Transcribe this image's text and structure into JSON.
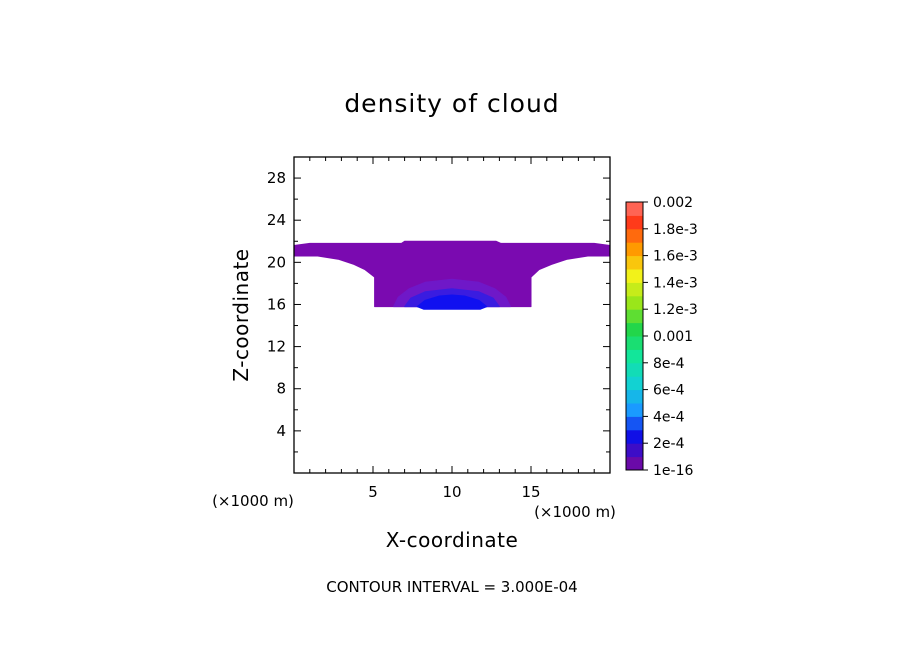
{
  "chart_data": {
    "type": "heatmap",
    "title": "density of cloud",
    "xlabel": "X-coordinate",
    "ylabel": "Z-coordinate",
    "x_unit": "(×1000 m)",
    "z_unit": "(×1000 m)",
    "xlim": [
      0,
      20
    ],
    "ylim": [
      0,
      30
    ],
    "x_ticks": [
      {
        "value": 5,
        "label": "5"
      },
      {
        "value": 10,
        "label": "10"
      },
      {
        "value": 15,
        "label": "15"
      }
    ],
    "y_ticks": [
      {
        "value": 4,
        "label": "4"
      },
      {
        "value": 8,
        "label": "8"
      },
      {
        "value": 12,
        "label": "12"
      },
      {
        "value": 16,
        "label": "16"
      },
      {
        "value": 20,
        "label": "20"
      },
      {
        "value": 24,
        "label": "24"
      },
      {
        "value": 28,
        "label": "28"
      }
    ],
    "colorbar": {
      "levels": [
        {
          "label": "1e-16",
          "color": "#6a0aa8"
        },
        {
          "label": "2e-4",
          "color": "#1010e6"
        },
        {
          "label": "4e-4",
          "color": "#1a9aff"
        },
        {
          "label": "6e-4",
          "color": "#12d2d2"
        },
        {
          "label": "8e-4",
          "color": "#12e69a"
        },
        {
          "label": "0.001",
          "color": "#22d64a"
        },
        {
          "label": "1.2e-3",
          "color": "#9ae61a"
        },
        {
          "label": "1.4e-3",
          "color": "#f2f21a"
        },
        {
          "label": "1.6e-3",
          "color": "#ff9a00"
        },
        {
          "label": "1.8e-3",
          "color": "#ff3a1a"
        },
        {
          "label": "0.002",
          "color": "#ff8e8e"
        }
      ]
    },
    "contour_interval_text": "CONTOUR INTERVAL = 3.000E-04",
    "regions": [
      {
        "name": "cloud-base-layer",
        "color": "#7a0ab0",
        "outline": [
          [
            0,
            21.6
          ],
          [
            0,
            20.6
          ],
          [
            1.5,
            20.6
          ],
          [
            2.8,
            20.3
          ],
          [
            3.8,
            19.8
          ],
          [
            4.5,
            19.3
          ],
          [
            5.1,
            18.6
          ],
          [
            5.1,
            15.8
          ],
          [
            15.0,
            15.8
          ],
          [
            15.0,
            18.6
          ],
          [
            15.5,
            19.3
          ],
          [
            16.3,
            19.8
          ],
          [
            17.3,
            20.3
          ],
          [
            18.6,
            20.6
          ],
          [
            20,
            20.6
          ],
          [
            20,
            21.6
          ],
          [
            19.0,
            21.8
          ],
          [
            13.1,
            21.8
          ],
          [
            12.8,
            22.0
          ],
          [
            7.0,
            22.0
          ],
          [
            6.8,
            21.8
          ],
          [
            1.0,
            21.8
          ]
        ]
      },
      {
        "name": "density-core-outer",
        "color": "#6f18c8",
        "outline": [
          [
            6.3,
            15.8
          ],
          [
            6.6,
            16.7
          ],
          [
            7.3,
            17.5
          ],
          [
            8.3,
            18.1
          ],
          [
            10.0,
            18.4
          ],
          [
            11.7,
            18.1
          ],
          [
            12.7,
            17.5
          ],
          [
            13.4,
            16.7
          ],
          [
            13.7,
            15.8
          ]
        ]
      },
      {
        "name": "density-core-mid",
        "color": "#3a1ce0",
        "outline": [
          [
            7.0,
            15.8
          ],
          [
            7.4,
            16.6
          ],
          [
            8.3,
            17.2
          ],
          [
            10.0,
            17.5
          ],
          [
            11.7,
            17.2
          ],
          [
            12.6,
            16.6
          ],
          [
            13.0,
            15.8
          ]
        ]
      },
      {
        "name": "density-core-inner",
        "color": "#1010f0",
        "outline": [
          [
            7.8,
            15.8
          ],
          [
            8.3,
            16.4
          ],
          [
            9.2,
            16.8
          ],
          [
            10.0,
            16.9
          ],
          [
            10.8,
            16.8
          ],
          [
            11.7,
            16.4
          ],
          [
            12.2,
            15.8
          ],
          [
            11.8,
            15.55
          ],
          [
            8.2,
            15.55
          ]
        ]
      }
    ]
  }
}
